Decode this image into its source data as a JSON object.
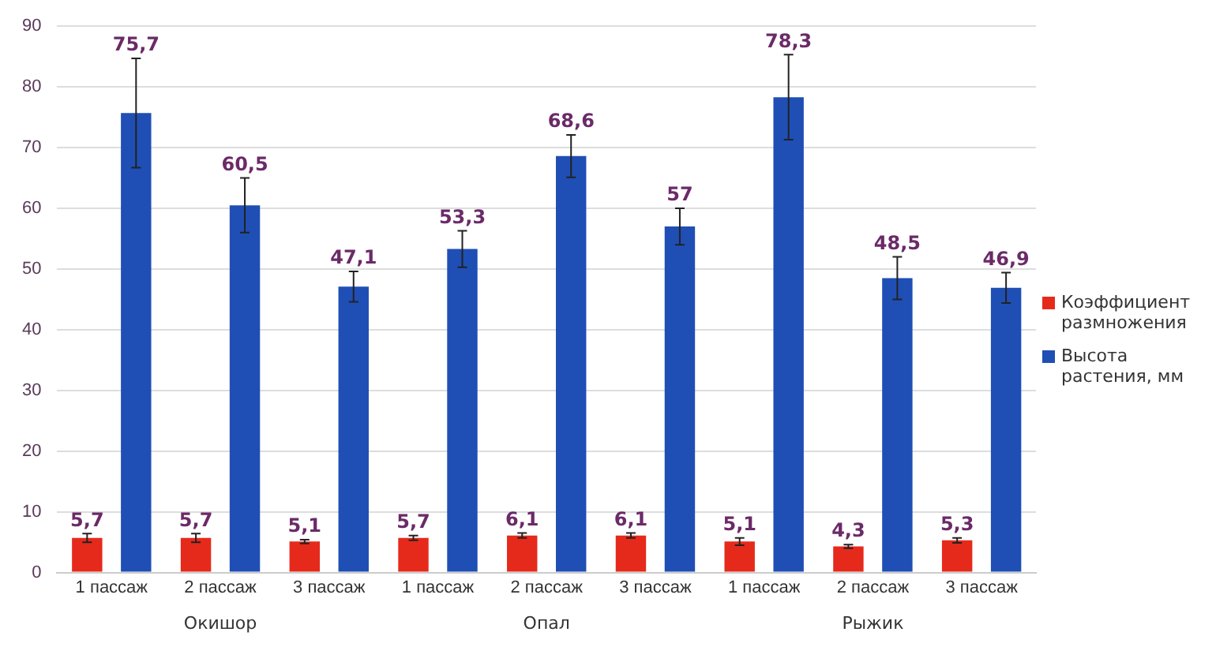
{
  "chart_data": {
    "type": "bar",
    "categories": [
      "1 пассаж",
      "2 пассаж",
      "3 пассаж",
      "1 пассаж",
      "2 пассаж",
      "3 пассаж",
      "1 пассаж",
      "2 пассаж",
      "3 пассаж"
    ],
    "series": [
      {
        "name": "Коэффициент размножения",
        "color": "#e52a1c",
        "values": [
          5.7,
          5.7,
          5.1,
          5.7,
          6.1,
          6.1,
          5.1,
          4.3,
          5.3
        ],
        "value_labels": [
          "5,7",
          "5,7",
          "5,1",
          "5,7",
          "6,1",
          "6,1",
          "5,1",
          "4,3",
          "5,3"
        ],
        "errors": [
          0.7,
          0.7,
          0.3,
          0.4,
          0.4,
          0.4,
          0.6,
          0.3,
          0.4
        ]
      },
      {
        "name": "Высота растения, мм",
        "color": "#1f4fb5",
        "values": [
          75.7,
          60.5,
          47.1,
          53.3,
          68.6,
          57,
          78.3,
          48.5,
          46.9
        ],
        "value_labels": [
          "75,7",
          "60,5",
          "47,1",
          "53,3",
          "68,6",
          "57",
          "78,3",
          "48,5",
          "46,9"
        ],
        "errors": [
          9,
          4.5,
          2.5,
          3,
          3.5,
          3,
          7,
          3.5,
          2.5
        ]
      }
    ],
    "annotations": [
      "Окишор",
      "Опал",
      "Рыжик"
    ],
    "ylim": [
      0,
      90
    ],
    "yticks": [
      0,
      10,
      20,
      30,
      40,
      50,
      60,
      70,
      80,
      90
    ],
    "grid": "y",
    "legend": "right"
  }
}
